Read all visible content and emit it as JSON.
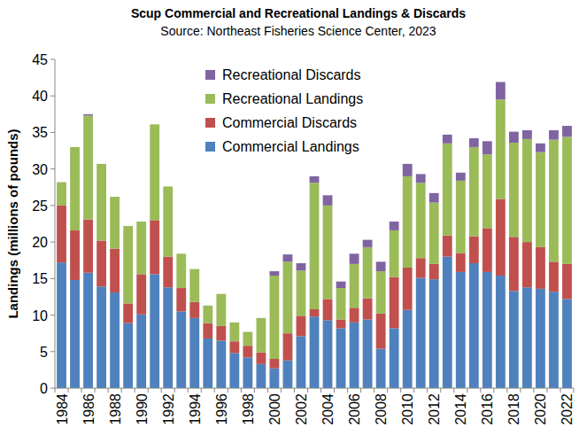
{
  "chart_data": {
    "type": "bar",
    "stacked": true,
    "title": "Scup Commercial and Recreational Landings & Discards",
    "subtitle": "Source: Northeast Fisheries Science Center, 2023",
    "y_label": "Landings (millions of pounds)",
    "legend": "top",
    "grid": false,
    "categories": [
      "1984",
      null,
      "1986",
      null,
      "1988",
      null,
      "1990",
      null,
      "1992",
      null,
      "1994",
      null,
      "1996",
      null,
      "1998",
      null,
      "2000",
      null,
      "2002",
      null,
      "2004",
      null,
      "2006",
      null,
      "2008",
      null,
      "2010",
      null,
      "2012",
      null,
      "2014",
      null,
      "2016",
      null,
      "2018",
      null,
      "2020",
      null,
      "2022"
    ],
    "series": [
      {
        "name": "Commercial Landings",
        "color": "#4f81bd",
        "values": [
          17.2,
          14.8,
          15.8,
          13.9,
          13.1,
          8.9,
          10.1,
          15.6,
          13.8,
          10.5,
          9.6,
          6.8,
          6.5,
          4.8,
          4.2,
          3.3,
          2.7,
          3.8,
          7.1,
          9.8,
          9.3,
          8.2,
          9.0,
          9.4,
          5.4,
          8.2,
          10.7,
          15.1,
          14.9,
          18.0,
          15.9,
          17.1,
          15.9,
          15.4,
          13.3,
          13.8,
          13.6,
          13.2,
          12.2
        ]
      },
      {
        "name": "Commercial Discards",
        "color": "#c0504d",
        "values": [
          7.8,
          6.8,
          7.3,
          6.3,
          6.0,
          2.7,
          5.5,
          7.4,
          4.2,
          3.2,
          2.2,
          2.1,
          2.0,
          1.6,
          1.6,
          1.6,
          1.3,
          3.7,
          2.8,
          1.0,
          2.9,
          1.2,
          2.0,
          2.9,
          4.8,
          7.0,
          5.8,
          2.7,
          2.1,
          2.9,
          2.6,
          3.7,
          6.0,
          10.5,
          7.4,
          6.2,
          5.7,
          4.1,
          4.8
        ]
      },
      {
        "name": "Recreational Landings",
        "color": "#9bbb59",
        "values": [
          3.2,
          11.4,
          14.2,
          10.5,
          7.1,
          10.6,
          7.2,
          13.1,
          9.6,
          4.7,
          4.5,
          2.4,
          4.4,
          2.6,
          1.9,
          4.7,
          11.4,
          9.8,
          6.2,
          17.3,
          12.8,
          4.3,
          6.0,
          7.0,
          5.8,
          6.4,
          12.5,
          10.3,
          8.4,
          12.6,
          9.9,
          12.2,
          10.1,
          13.6,
          12.9,
          14.1,
          13.0,
          16.7,
          17.4
        ]
      },
      {
        "name": "Recreational Discards",
        "color": "#8064a2",
        "values": [
          0,
          0,
          0.2,
          0,
          0,
          0,
          0,
          0,
          0,
          0,
          0,
          0,
          0,
          0,
          0,
          0,
          0.6,
          1.0,
          1.0,
          0.9,
          1.4,
          0.9,
          1.4,
          1.0,
          1.3,
          1.2,
          1.7,
          1.2,
          1.3,
          1.2,
          1.1,
          1.2,
          1.8,
          2.4,
          1.5,
          1.2,
          1.2,
          1.3,
          1.5
        ]
      }
    ],
    "ylim": [
      0,
      45
    ],
    "yticks": [
      0,
      5,
      10,
      15,
      20,
      25,
      30,
      35,
      40,
      45
    ]
  }
}
